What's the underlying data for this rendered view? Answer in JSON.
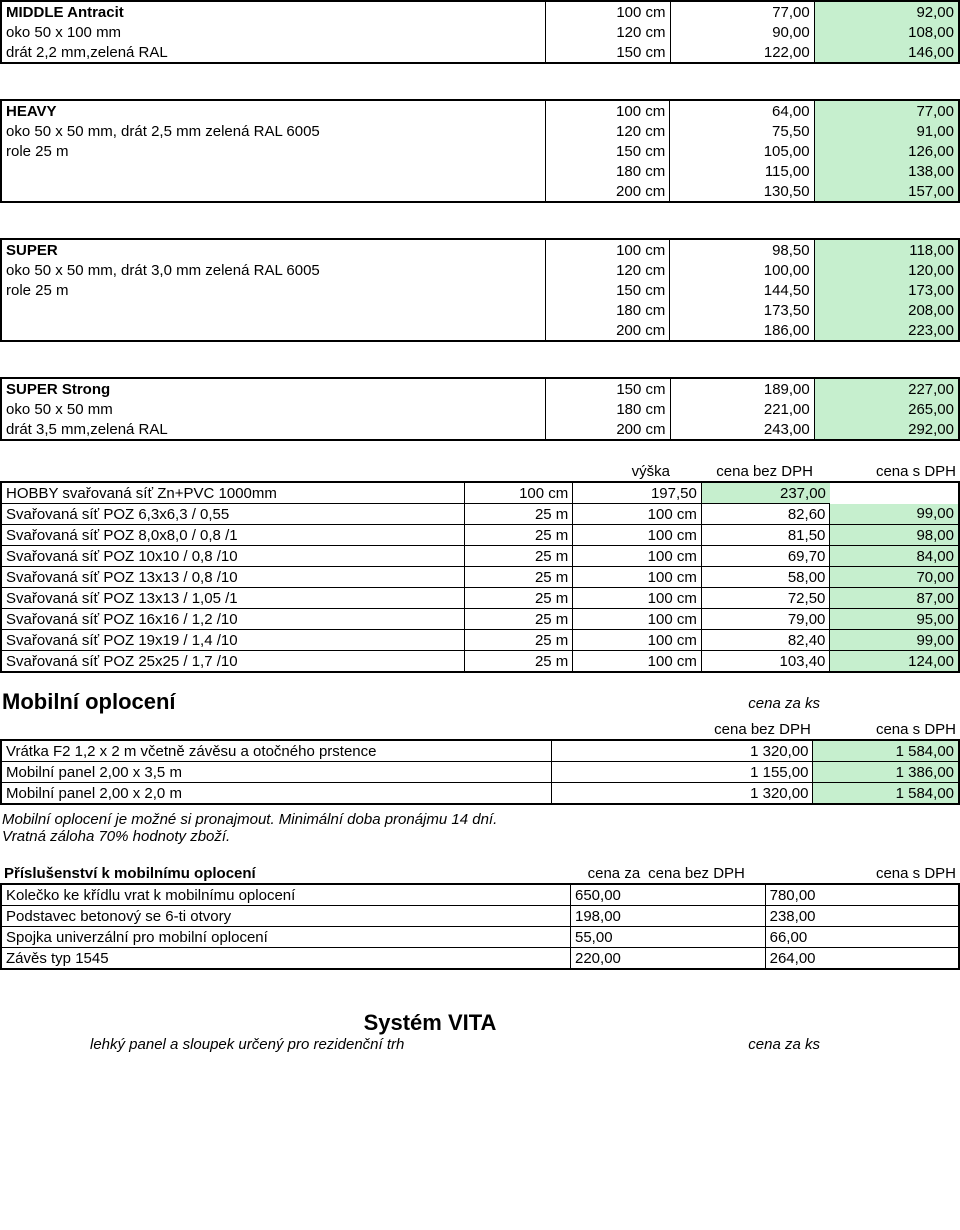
{
  "middle": {
    "title": "MIDDLE Antracit",
    "line2": "oko 50 x 100 mm",
    "line3": "drát 2,2 mm,zelená RAL",
    "rows": [
      {
        "size": "100 cm",
        "p1": "77,00",
        "p2": "92,00"
      },
      {
        "size": "120 cm",
        "p1": "90,00",
        "p2": "108,00"
      },
      {
        "size": "150 cm",
        "p1": "122,00",
        "p2": "146,00"
      }
    ]
  },
  "heavy": {
    "title": "HEAVY",
    "line2": "oko 50 x 50 mm, drát 2,5 mm zelená RAL 6005",
    "line3": "role 25 m",
    "rows": [
      {
        "size": "100 cm",
        "p1": "64,00",
        "p2": "77,00"
      },
      {
        "size": "120 cm",
        "p1": "75,50",
        "p2": "91,00"
      },
      {
        "size": "150 cm",
        "p1": "105,00",
        "p2": "126,00"
      },
      {
        "size": "180 cm",
        "p1": "115,00",
        "p2": "138,00"
      },
      {
        "size": "200 cm",
        "p1": "130,50",
        "p2": "157,00"
      }
    ]
  },
  "super": {
    "title": "SUPER",
    "line2": "oko 50 x 50 mm, drát 3,0 mm zelená RAL 6005",
    "line3": "role 25 m",
    "rows": [
      {
        "size": "100 cm",
        "p1": "98,50",
        "p2": "118,00"
      },
      {
        "size": "120 cm",
        "p1": "100,00",
        "p2": "120,00"
      },
      {
        "size": "150 cm",
        "p1": "144,50",
        "p2": "173,00"
      },
      {
        "size": "180 cm",
        "p1": "173,50",
        "p2": "208,00"
      },
      {
        "size": "200 cm",
        "p1": "186,00",
        "p2": "223,00"
      }
    ]
  },
  "strong": {
    "title": "SUPER Strong",
    "line2": "oko 50 x 50 mm",
    "line3": "drát 3,5 mm,zelená RAL",
    "rows": [
      {
        "size": "150 cm",
        "p1": "189,00",
        "p2": "227,00"
      },
      {
        "size": "180 cm",
        "p1": "221,00",
        "p2": "265,00"
      },
      {
        "size": "200 cm",
        "p1": "243,00",
        "p2": "292,00"
      }
    ]
  },
  "mesh_header": {
    "h1": "výška",
    "h2": "cena bez DPH",
    "h3": "cena s DPH"
  },
  "mesh": [
    {
      "name": "HOBBY svařovaná síť Zn+PVC  1000mm",
      "q": "",
      "size": "100 cm",
      "p1": "197,50",
      "p2": "237,00"
    },
    {
      "name": "Svařovaná síť POZ 6,3x6,3 / 0,55",
      "q": "25 m",
      "size": "100 cm",
      "p1": "82,60",
      "p2": "99,00"
    },
    {
      "name": "Svařovaná síť POZ 8,0x8,0 / 0,8 /1",
      "q": "25 m",
      "size": "100 cm",
      "p1": "81,50",
      "p2": "98,00"
    },
    {
      "name": "Svařovaná síť POZ 10x10 / 0,8 /10",
      "q": "25 m",
      "size": "100 cm",
      "p1": "69,70",
      "p2": "84,00"
    },
    {
      "name": "Svařovaná síť POZ 13x13 / 0,8 /10",
      "q": "25 m",
      "size": "100 cm",
      "p1": "58,00",
      "p2": "70,00"
    },
    {
      "name": "Svařovaná síť POZ 13x13 / 1,05 /1",
      "q": "25 m",
      "size": "100 cm",
      "p1": "72,50",
      "p2": "87,00"
    },
    {
      "name": "Svařovaná síť POZ 16x16 / 1,2 /10",
      "q": "25 m",
      "size": "100 cm",
      "p1": "79,00",
      "p2": "95,00"
    },
    {
      "name": "Svařovaná síť POZ 19x19 / 1,4 /10",
      "q": "25 m",
      "size": "100 cm",
      "p1": "82,40",
      "p2": "99,00"
    },
    {
      "name": "Svařovaná síť POZ 25x25 / 1,7 /10",
      "q": "25 m",
      "size": "100 cm",
      "p1": "103,40",
      "p2": "124,00"
    }
  ],
  "mobilni": {
    "title": "Mobilní oplocení",
    "cenazaks": "cena za ks",
    "hdr_bez": "cena bez DPH",
    "hdr_s": "cena s DPH",
    "rows": [
      {
        "name": "Vrátka F2 1,2 x 2 m včetně závěsu a otočného prstence",
        "p1": "1 320,00",
        "p2": "1 584,00"
      },
      {
        "name": "Mobilní panel 2,00 x 3,5 m",
        "p1": "1 155,00",
        "p2": "1 386,00"
      },
      {
        "name": "Mobilní panel 2,00 x 2,0 m",
        "p1": "1 320,00",
        "p2": "1 584,00"
      }
    ],
    "note1": "Mobilní oplocení je možné si pronajmout. Minimální doba pronájmu 14 dní.",
    "note2": "Vratná záloha 70% hodnoty zboží."
  },
  "acc": {
    "title": "Příslušenství k mobilnímu oplocení",
    "cenaza": "cena za",
    "bez": "cena bez DPH",
    "s": "cena s DPH",
    "rows": [
      {
        "name": "Kolečko ke křídlu vrat k mobilnímu oplocení",
        "p1": "650,00",
        "p2": "780,00"
      },
      {
        "name": "Podstavec betonový se 6-ti otvory",
        "p1": "198,00",
        "p2": "238,00"
      },
      {
        "name": "Spojka univerzální pro mobilní oplocení",
        "p1": "55,00",
        "p2": "66,00"
      },
      {
        "name": "Závěs typ 1545",
        "p1": "220,00",
        "p2": "264,00"
      }
    ]
  },
  "vita": {
    "title": "Systém VITA",
    "sub": "lehký panel a sloupek určený pro rezidenční trh",
    "cenazaks": "cena za ks"
  }
}
